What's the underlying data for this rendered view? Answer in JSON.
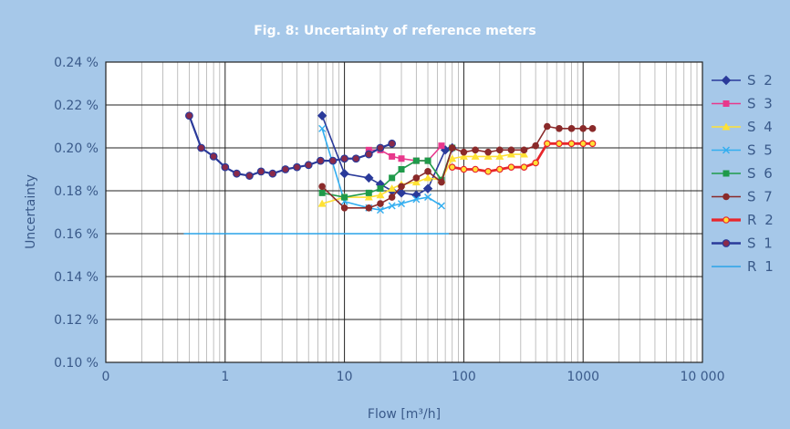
{
  "chart_data": {
    "type": "line",
    "title": "Fig. 8: Uncertainty of reference meters",
    "xlabel": "Flow [m³/h]",
    "ylabel": "Uncertainty",
    "x_scale": "log",
    "xlim": [
      0.1,
      10000
    ],
    "ylim": [
      0.1,
      0.24
    ],
    "grid": true,
    "legend_position": "right",
    "x_tick_labels": [
      {
        "value": 0.1,
        "label": "0"
      },
      {
        "value": 1,
        "label": "1"
      },
      {
        "value": 10,
        "label": "10"
      },
      {
        "value": 100,
        "label": "100"
      },
      {
        "value": 1000,
        "label": "1000"
      },
      {
        "value": 10000,
        "label": "10 000"
      }
    ],
    "y_tick_labels": [
      {
        "value": 0.1,
        "label": "0.10 %"
      },
      {
        "value": 0.12,
        "label": "0.12 %"
      },
      {
        "value": 0.14,
        "label": "0.14 %"
      },
      {
        "value": 0.16,
        "label": "0.16 %"
      },
      {
        "value": 0.18,
        "label": "0.18 %"
      },
      {
        "value": 0.2,
        "label": "0.20 %"
      },
      {
        "value": 0.22,
        "label": "0.22 %"
      },
      {
        "value": 0.24,
        "label": "0.24 %"
      }
    ],
    "series": [
      {
        "name": "S 2",
        "color": "#2a3a9a",
        "marker": "diamond",
        "x": [
          6.5,
          10,
          16,
          20,
          25,
          30,
          40,
          50,
          70,
          80
        ],
        "y": [
          0.215,
          0.188,
          0.186,
          0.183,
          0.18,
          0.179,
          0.178,
          0.181,
          0.199,
          0.2
        ]
      },
      {
        "name": "S 3",
        "color": "#e8388c",
        "marker": "square",
        "x": [
          16,
          20,
          25,
          30,
          40,
          50,
          65
        ],
        "y": [
          0.199,
          0.199,
          0.196,
          0.195,
          0.194,
          0.194,
          0.201
        ]
      },
      {
        "name": "S 4",
        "color": "#ffe135",
        "marker": "triangle",
        "x": [
          6.5,
          10,
          16,
          20,
          25,
          30,
          40,
          50,
          65,
          80,
          100,
          125,
          160,
          200,
          250,
          320
        ],
        "y": [
          0.174,
          0.177,
          0.177,
          0.178,
          0.181,
          0.183,
          0.184,
          0.186,
          0.185,
          0.195,
          0.196,
          0.196,
          0.196,
          0.196,
          0.197,
          0.197
        ]
      },
      {
        "name": "S 5",
        "color": "#33aef0",
        "marker": "x",
        "x": [
          6.5,
          10,
          16,
          20,
          25,
          30,
          40,
          50,
          65
        ],
        "y": [
          0.209,
          0.175,
          0.172,
          0.171,
          0.173,
          0.174,
          0.176,
          0.177,
          0.173
        ]
      },
      {
        "name": "S 6",
        "color": "#1f9a4a",
        "marker": "square",
        "x": [
          6.5,
          10,
          16,
          20,
          25,
          30,
          40,
          50,
          65,
          80
        ],
        "y": [
          0.179,
          0.177,
          0.179,
          0.181,
          0.186,
          0.19,
          0.194,
          0.194,
          0.185,
          0.2
        ]
      },
      {
        "name": "S 7",
        "color": "#8a2a2a",
        "marker": "circle",
        "x": [
          6.5,
          10,
          16,
          20,
          25,
          30,
          40,
          50,
          65,
          80,
          100,
          125,
          160,
          200,
          250,
          320,
          400,
          500,
          630,
          800,
          1000,
          1200
        ],
        "y": [
          0.182,
          0.172,
          0.172,
          0.174,
          0.177,
          0.182,
          0.186,
          0.189,
          0.184,
          0.2,
          0.198,
          0.199,
          0.198,
          0.199,
          0.199,
          0.199,
          0.201,
          0.21,
          0.209,
          0.209,
          0.209,
          0.209
        ]
      },
      {
        "name": "R 2",
        "color": "#e8262b",
        "marker": "circle-yellow",
        "x": [
          80,
          100,
          125,
          160,
          200,
          250,
          320,
          400,
          500,
          630,
          800,
          1000,
          1200
        ],
        "y": [
          0.191,
          0.19,
          0.19,
          0.189,
          0.19,
          0.191,
          0.191,
          0.193,
          0.202,
          0.202,
          0.202,
          0.202,
          0.202
        ]
      },
      {
        "name": "S 1",
        "color": "#2a3a9a",
        "marker": "circle-red",
        "x": [
          0.5,
          0.63,
          0.8,
          1,
          1.25,
          1.6,
          2,
          2.5,
          3.2,
          4,
          5,
          6.3,
          8,
          10,
          12.5,
          16,
          20,
          25
        ],
        "y": [
          0.215,
          0.2,
          0.196,
          0.191,
          0.188,
          0.187,
          0.189,
          0.188,
          0.19,
          0.191,
          0.192,
          0.194,
          0.194,
          0.195,
          0.195,
          0.197,
          0.2,
          0.202
        ]
      },
      {
        "name": "R 1",
        "color": "#2aa4e8",
        "marker": "none",
        "x": [
          0.45,
          75
        ],
        "y": [
          0.16,
          0.16
        ]
      }
    ]
  }
}
